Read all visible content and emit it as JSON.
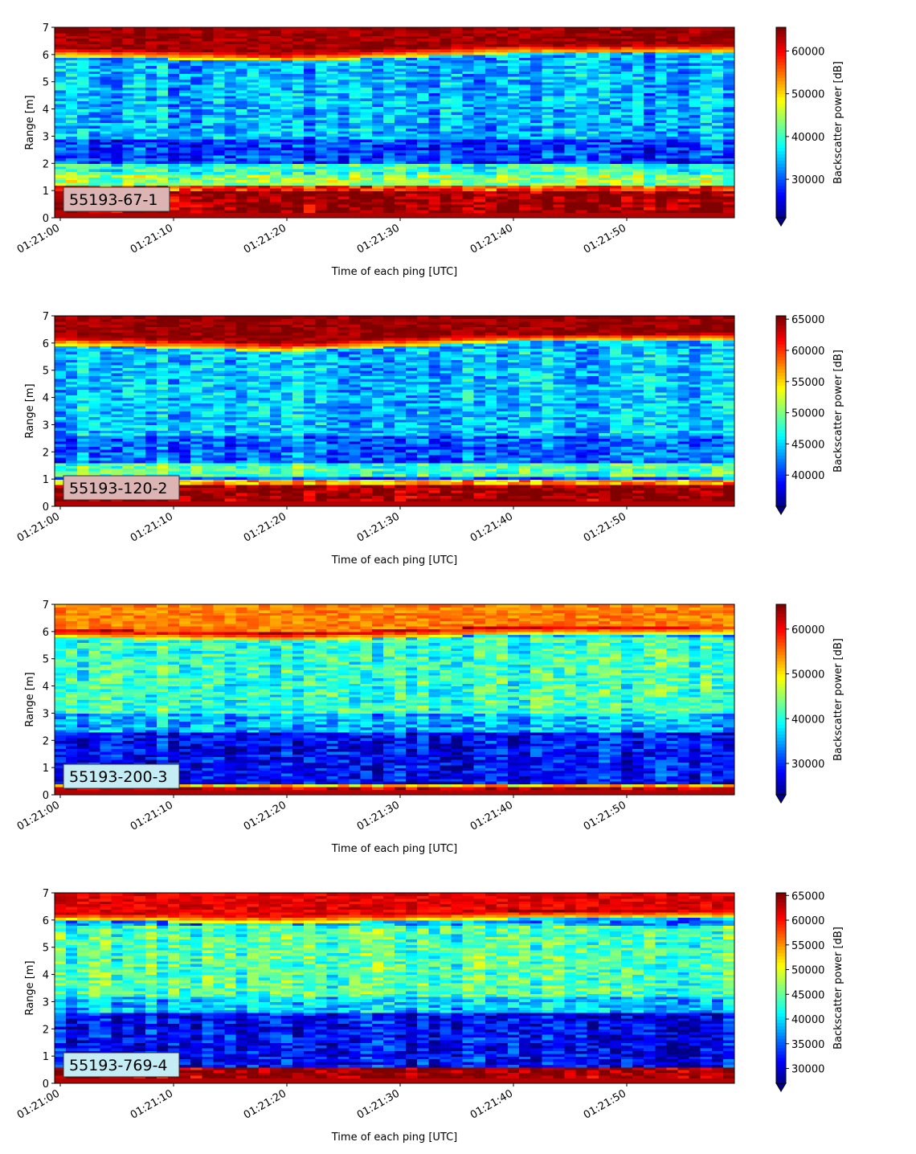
{
  "chart_data": [
    {
      "type": "heatmap",
      "tag": "55193-67-1",
      "tag_bg": "#dcb4b4",
      "xlabel": "Time of each ping [UTC]",
      "ylabel": "Range [m]",
      "colorbar_label": "Backscatter power [dB]",
      "colormap": "jet",
      "x_range": [
        "01:21:00",
        "01:21:59"
      ],
      "ylim": [
        0,
        7
      ],
      "x_ticks": [
        "01:21:00",
        "01:21:10",
        "01:21:20",
        "01:21:30",
        "01:21:40",
        "01:21:50"
      ],
      "y_ticks": [
        "0",
        "1",
        "2",
        "3",
        "4",
        "5",
        "6",
        "7"
      ],
      "color_range": [
        21000,
        65535
      ],
      "colorbar_ticks": [
        "30000",
        "40000",
        "50000",
        "60000"
      ],
      "surface_range_m": [
        5.95,
        5.75,
        6.05,
        6.08
      ],
      "bands": [
        {
          "from": 0.2,
          "to": 1.05,
          "level": 0.98
        },
        {
          "from": 1.05,
          "to": 1.25,
          "level": 0.82
        },
        {
          "from": 1.25,
          "to": 1.6,
          "level": 0.52
        },
        {
          "from": 1.6,
          "to": 2.0,
          "level": 0.42
        },
        {
          "from": 2.0,
          "to": 2.9,
          "level": 0.18
        },
        {
          "from": 2.9,
          "to": 5.8,
          "level": 0.3
        }
      ],
      "top_level": 0.97
    },
    {
      "type": "heatmap",
      "tag": "55193-120-2",
      "tag_bg": "#dcb4b4",
      "xlabel": "Time of each ping [UTC]",
      "ylabel": "Range [m]",
      "colorbar_label": "Backscatter power [dB]",
      "colormap": "jet",
      "x_range": [
        "01:21:00",
        "01:21:59"
      ],
      "ylim": [
        0,
        7
      ],
      "x_ticks": [
        "01:21:00",
        "01:21:10",
        "01:21:20",
        "01:21:30",
        "01:21:40",
        "01:21:50"
      ],
      "y_ticks": [
        "0",
        "1",
        "2",
        "3",
        "4",
        "5",
        "6",
        "7"
      ],
      "color_range": [
        35000,
        65535
      ],
      "colorbar_ticks": [
        "40000",
        "45000",
        "50000",
        "55000",
        "60000",
        "65000"
      ],
      "surface_range_m": [
        5.95,
        5.7,
        6.05,
        6.08
      ],
      "bands": [
        {
          "from": 0.2,
          "to": 0.85,
          "level": 0.98
        },
        {
          "from": 0.85,
          "to": 1.0,
          "level": 0.7
        },
        {
          "from": 1.0,
          "to": 1.15,
          "level": 0.2
        },
        {
          "from": 1.15,
          "to": 1.6,
          "level": 0.45
        },
        {
          "from": 1.6,
          "to": 2.6,
          "level": 0.22
        },
        {
          "from": 2.6,
          "to": 5.8,
          "level": 0.32
        }
      ],
      "top_level": 0.98
    },
    {
      "type": "heatmap",
      "tag": "55193-200-3",
      "tag_bg": "#c4ecf4",
      "xlabel": "Time of each ping [UTC]",
      "ylabel": "Range [m]",
      "colorbar_label": "Backscatter power [dB]",
      "colormap": "jet",
      "x_range": [
        "01:21:00",
        "01:21:59"
      ],
      "ylim": [
        0,
        7
      ],
      "x_ticks": [
        "01:21:00",
        "01:21:10",
        "01:21:20",
        "01:21:30",
        "01:21:40",
        "01:21:50"
      ],
      "y_ticks": [
        "0",
        "1",
        "2",
        "3",
        "4",
        "5",
        "6",
        "7"
      ],
      "color_range": [
        23000,
        65535
      ],
      "colorbar_ticks": [
        "30000",
        "40000",
        "50000",
        "60000"
      ],
      "surface_range_m": [
        5.8,
        5.65,
        5.9,
        5.95
      ],
      "bands": [
        {
          "from": 0.1,
          "to": 0.3,
          "level": 0.95
        },
        {
          "from": 0.3,
          "to": 0.45,
          "level": 0.65
        },
        {
          "from": 0.45,
          "to": 2.3,
          "level": 0.12
        },
        {
          "from": 2.3,
          "to": 3.0,
          "level": 0.3
        },
        {
          "from": 3.0,
          "to": 5.8,
          "level": 0.42
        }
      ],
      "top_level": 0.75
    },
    {
      "type": "heatmap",
      "tag": "55193-769-4",
      "tag_bg": "#c4ecf4",
      "xlabel": "Time of each ping [UTC]",
      "ylabel": "Range [m]",
      "colorbar_label": "Backscatter power [dB]",
      "colormap": "jet",
      "x_range": [
        "01:21:00",
        "01:21:59"
      ],
      "ylim": [
        0,
        7
      ],
      "x_ticks": [
        "01:21:00",
        "01:21:10",
        "01:21:20",
        "01:21:30",
        "01:21:40",
        "01:21:50"
      ],
      "y_ticks": [
        "0",
        "1",
        "2",
        "3",
        "4",
        "5",
        "6",
        "7"
      ],
      "color_range": [
        27000,
        65535
      ],
      "colorbar_ticks": [
        "30000",
        "35000",
        "40000",
        "45000",
        "50000",
        "55000",
        "60000",
        "65000"
      ],
      "surface_range_m": [
        6.0,
        5.9,
        6.05,
        6.1
      ],
      "bands": [
        {
          "from": 0.2,
          "to": 0.65,
          "level": 0.98
        },
        {
          "from": 0.65,
          "to": 2.6,
          "level": 0.12
        },
        {
          "from": 2.6,
          "to": 3.2,
          "level": 0.32
        },
        {
          "from": 3.2,
          "to": 5.8,
          "level": 0.45
        }
      ],
      "top_level": 0.9
    }
  ]
}
